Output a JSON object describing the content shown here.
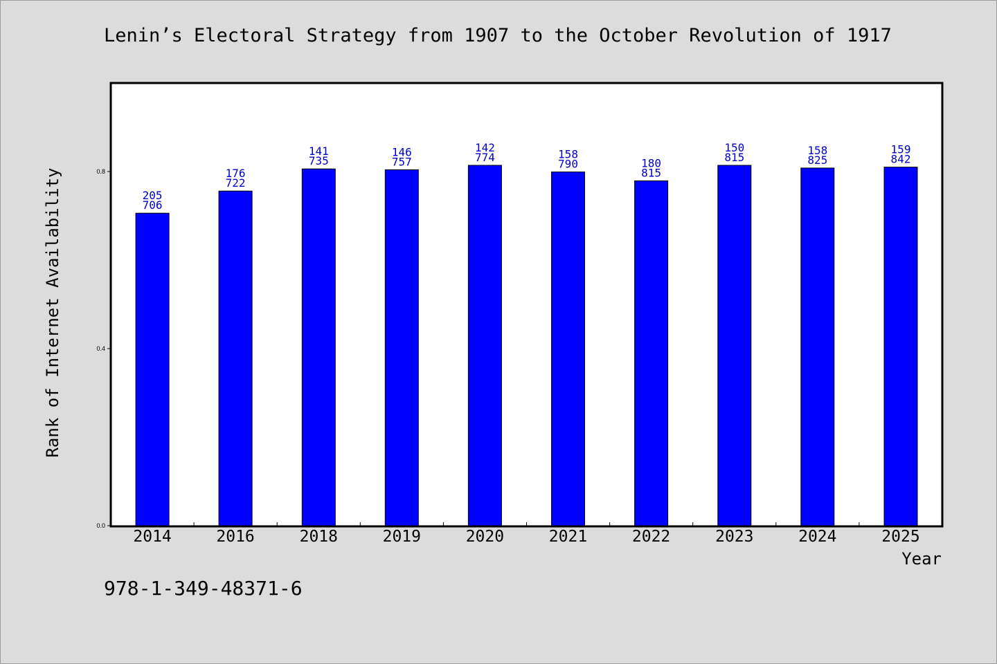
{
  "page": {
    "title": "Lenin’s Electoral Strategy from 1907 to the October Revolution of 1917",
    "footer_code": "978-1-349-48371-6"
  },
  "chart_data": {
    "type": "bar",
    "title": "Lenin’s Electoral Strategy from 1907 to the October Revolution of 1917",
    "xlabel": "Year",
    "ylabel": "Rank of Internet Availability",
    "categories": [
      "2014",
      "2016",
      "2018",
      "2019",
      "2020",
      "2021",
      "2022",
      "2023",
      "2024",
      "2025"
    ],
    "values": [
      0.706,
      0.756,
      0.806,
      0.804,
      0.814,
      0.799,
      0.779,
      0.814,
      0.808,
      0.81
    ],
    "data_labels": [
      [
        "205",
        "706"
      ],
      [
        "176",
        "722"
      ],
      [
        "141",
        "735"
      ],
      [
        "146",
        "757"
      ],
      [
        "142",
        "774"
      ],
      [
        "158",
        "790"
      ],
      [
        "180",
        "815"
      ],
      [
        "150",
        "815"
      ],
      [
        "158",
        "825"
      ],
      [
        "159",
        "842"
      ]
    ],
    "yticks": [
      "0.0",
      "0.4",
      "0.8"
    ],
    "ylim": [
      0,
      1.0
    ],
    "grid": false,
    "legend": "none",
    "bar_color": "#0000ff",
    "label_color": "#0000cc",
    "plot_background": "#ffffff",
    "page_background": "#dcdcdc"
  }
}
